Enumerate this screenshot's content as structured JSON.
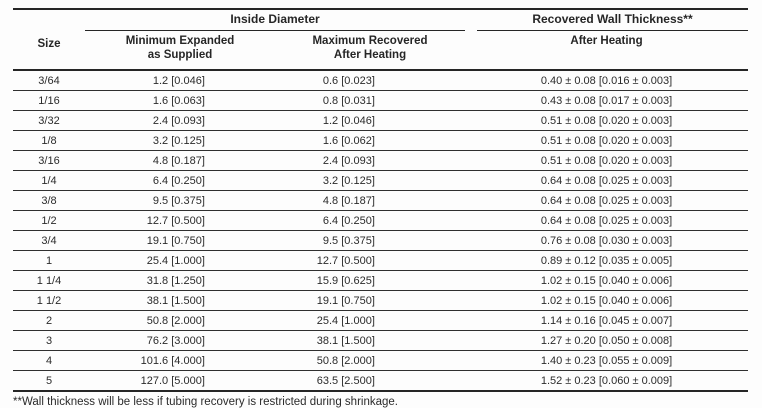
{
  "table": {
    "header": {
      "size": "Size",
      "inside_diameter_group": "Inside Diameter",
      "wall_thickness_group": "Recovered Wall Thickness**",
      "min_expanded_line1": "Minimum Expanded",
      "min_expanded_line2": "as Supplied",
      "max_recovered_line1": "Maximum Recovered",
      "max_recovered_line2": "After Heating",
      "after_heating": "After Heating"
    },
    "rows": [
      {
        "size": "3/64",
        "min_expanded": "1.2 [0.046]",
        "max_recovered": "0.6 [0.023]",
        "wall_thickness": "0.40 ± 0.08 [0.016 ± 0.003]"
      },
      {
        "size": "1/16",
        "min_expanded": "1.6 [0.063]",
        "max_recovered": "0.8 [0.031]",
        "wall_thickness": "0.43 ± 0.08 [0.017 ± 0.003]"
      },
      {
        "size": "3/32",
        "min_expanded": "2.4 [0.093]",
        "max_recovered": "1.2 [0.046]",
        "wall_thickness": "0.51 ± 0.08 [0.020 ± 0.003]"
      },
      {
        "size": "1/8",
        "min_expanded": "3.2 [0.125]",
        "max_recovered": "1.6 [0.062]",
        "wall_thickness": "0.51 ± 0.08 [0.020 ± 0.003]"
      },
      {
        "size": "3/16",
        "min_expanded": "4.8 [0.187]",
        "max_recovered": "2.4 [0.093]",
        "wall_thickness": "0.51 ± 0.08 [0.020 ± 0.003]"
      },
      {
        "size": "1/4",
        "min_expanded": "6.4 [0.250]",
        "max_recovered": "3.2 [0.125]",
        "wall_thickness": "0.64 ± 0.08 [0.025 ± 0.003]"
      },
      {
        "size": "3/8",
        "min_expanded": "9.5 [0.375]",
        "max_recovered": "4.8 [0.187]",
        "wall_thickness": "0.64 ± 0.08 [0.025 ± 0.003]"
      },
      {
        "size": "1/2",
        "min_expanded": "12.7 [0.500]",
        "max_recovered": "6.4 [0.250]",
        "wall_thickness": "0.64 ± 0.08 [0.025 ± 0.003]"
      },
      {
        "size": "3/4",
        "min_expanded": "19.1 [0.750]",
        "max_recovered": "9.5 [0.375]",
        "wall_thickness": "0.76 ± 0.08 [0.030 ± 0.003]"
      },
      {
        "size": "1",
        "min_expanded": "25.4 [1.000]",
        "max_recovered": "12.7 [0.500]",
        "wall_thickness": "0.89 ± 0.12 [0.035 ± 0.005]"
      },
      {
        "size": "1 1/4",
        "min_expanded": "31.8 [1.250]",
        "max_recovered": "15.9 [0.625]",
        "wall_thickness": "1.02 ± 0.15 [0.040 ± 0.006]"
      },
      {
        "size": "1 1/2",
        "min_expanded": "38.1 [1.500]",
        "max_recovered": "19.1 [0.750]",
        "wall_thickness": "1.02 ± 0.15 [0.040 ± 0.006]"
      },
      {
        "size": "2",
        "min_expanded": "50.8 [2.000]",
        "max_recovered": "25.4 [1.000]",
        "wall_thickness": "1.14 ± 0.16 [0.045 ± 0.007]"
      },
      {
        "size": "3",
        "min_expanded": "76.2 [3.000]",
        "max_recovered": "38.1 [1.500]",
        "wall_thickness": "1.27 ± 0.20 [0.050 ± 0.008]"
      },
      {
        "size": "4",
        "min_expanded": "101.6 [4.000]",
        "max_recovered": "50.8 [2.000]",
        "wall_thickness": "1.40 ± 0.23 [0.055 ± 0.009]"
      },
      {
        "size": "5",
        "min_expanded": "127.0 [5.000]",
        "max_recovered": "63.5 [2.500]",
        "wall_thickness": "1.52 ± 0.23 [0.060 ± 0.009]"
      }
    ]
  },
  "footnote": "**Wall thickness will be less if tubing recovery is restricted during shrinkage.",
  "colors": {
    "text": "#2b2b2b",
    "rule": "#262626",
    "background": "#fdfdfd"
  }
}
